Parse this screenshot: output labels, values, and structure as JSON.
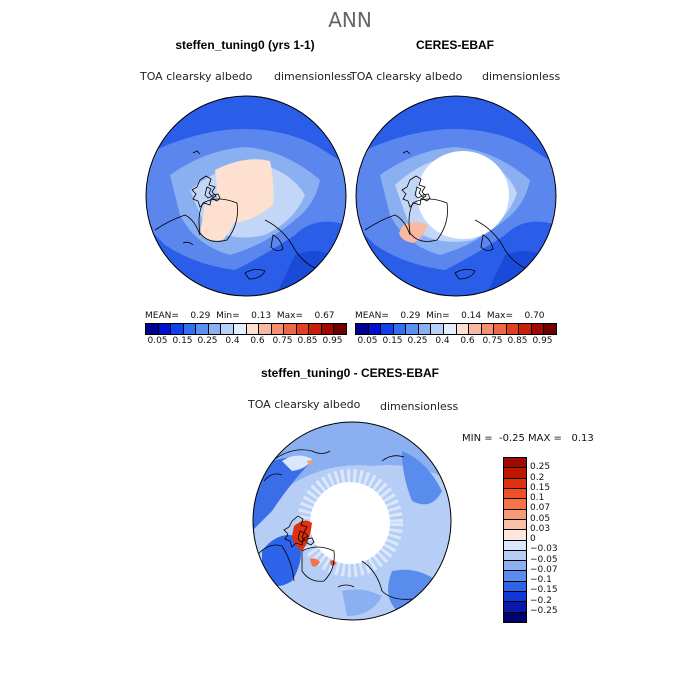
{
  "figure": {
    "title": "ANN",
    "left_panel": {
      "title": "steffen_tuning0 (yrs 1-1)",
      "variable": "TOA clearsky albedo",
      "units": "dimensionless",
      "mean_label": "MEAN=",
      "mean": "0.29",
      "min_label": "Min=",
      "min": "0.13",
      "max_label": "Max=",
      "max": "0.67"
    },
    "right_panel": {
      "title": "CERES-EBAF",
      "variable": "TOA clearsky albedo",
      "units": "dimensionless",
      "mean_label": "MEAN=",
      "mean": "0.29",
      "min_label": "Min=",
      "min": "0.14",
      "max_label": "Max=",
      "max": "0.70"
    },
    "abs_colorbar": {
      "tick_labels": [
        "0.05",
        "0.15",
        "0.25",
        "0.4",
        "0.6",
        "0.75",
        "0.85",
        "0.95"
      ],
      "colors": [
        "#000090",
        "#0010d0",
        "#1040f0",
        "#3070f0",
        "#5a90f0",
        "#8ab0f4",
        "#b8cff8",
        "#e4eefc",
        "#fde0d0",
        "#f9b8a0",
        "#f49070",
        "#ee6848",
        "#e24020",
        "#c82008",
        "#a00800",
        "#700000"
      ]
    },
    "diff_panel": {
      "title": "steffen_tuning0 - CERES-EBAF",
      "variable": "TOA clearsky albedo",
      "units": "dimensionless",
      "min_label": "MIN =",
      "min": "-0.25",
      "max_label": "MAX =",
      "max": "0.13"
    },
    "diff_colorbar": {
      "tick_labels": [
        "0.25",
        "0.2",
        "0.15",
        "0.1",
        "0.07",
        "0.05",
        "0.03",
        "0",
        "−0.03",
        "−0.05",
        "−0.07",
        "−0.1",
        "−0.15",
        "−0.2",
        "−0.25"
      ],
      "colors": [
        "#a00800",
        "#c01800",
        "#e03010",
        "#f05028",
        "#f47448",
        "#f89a78",
        "#fbc0a8",
        "#fde6dc",
        "#dbe7fb",
        "#b6cdf6",
        "#8ab0f2",
        "#5a8cee",
        "#2e64ea",
        "#1038d8",
        "#0818a8",
        "#000070"
      ]
    }
  }
}
